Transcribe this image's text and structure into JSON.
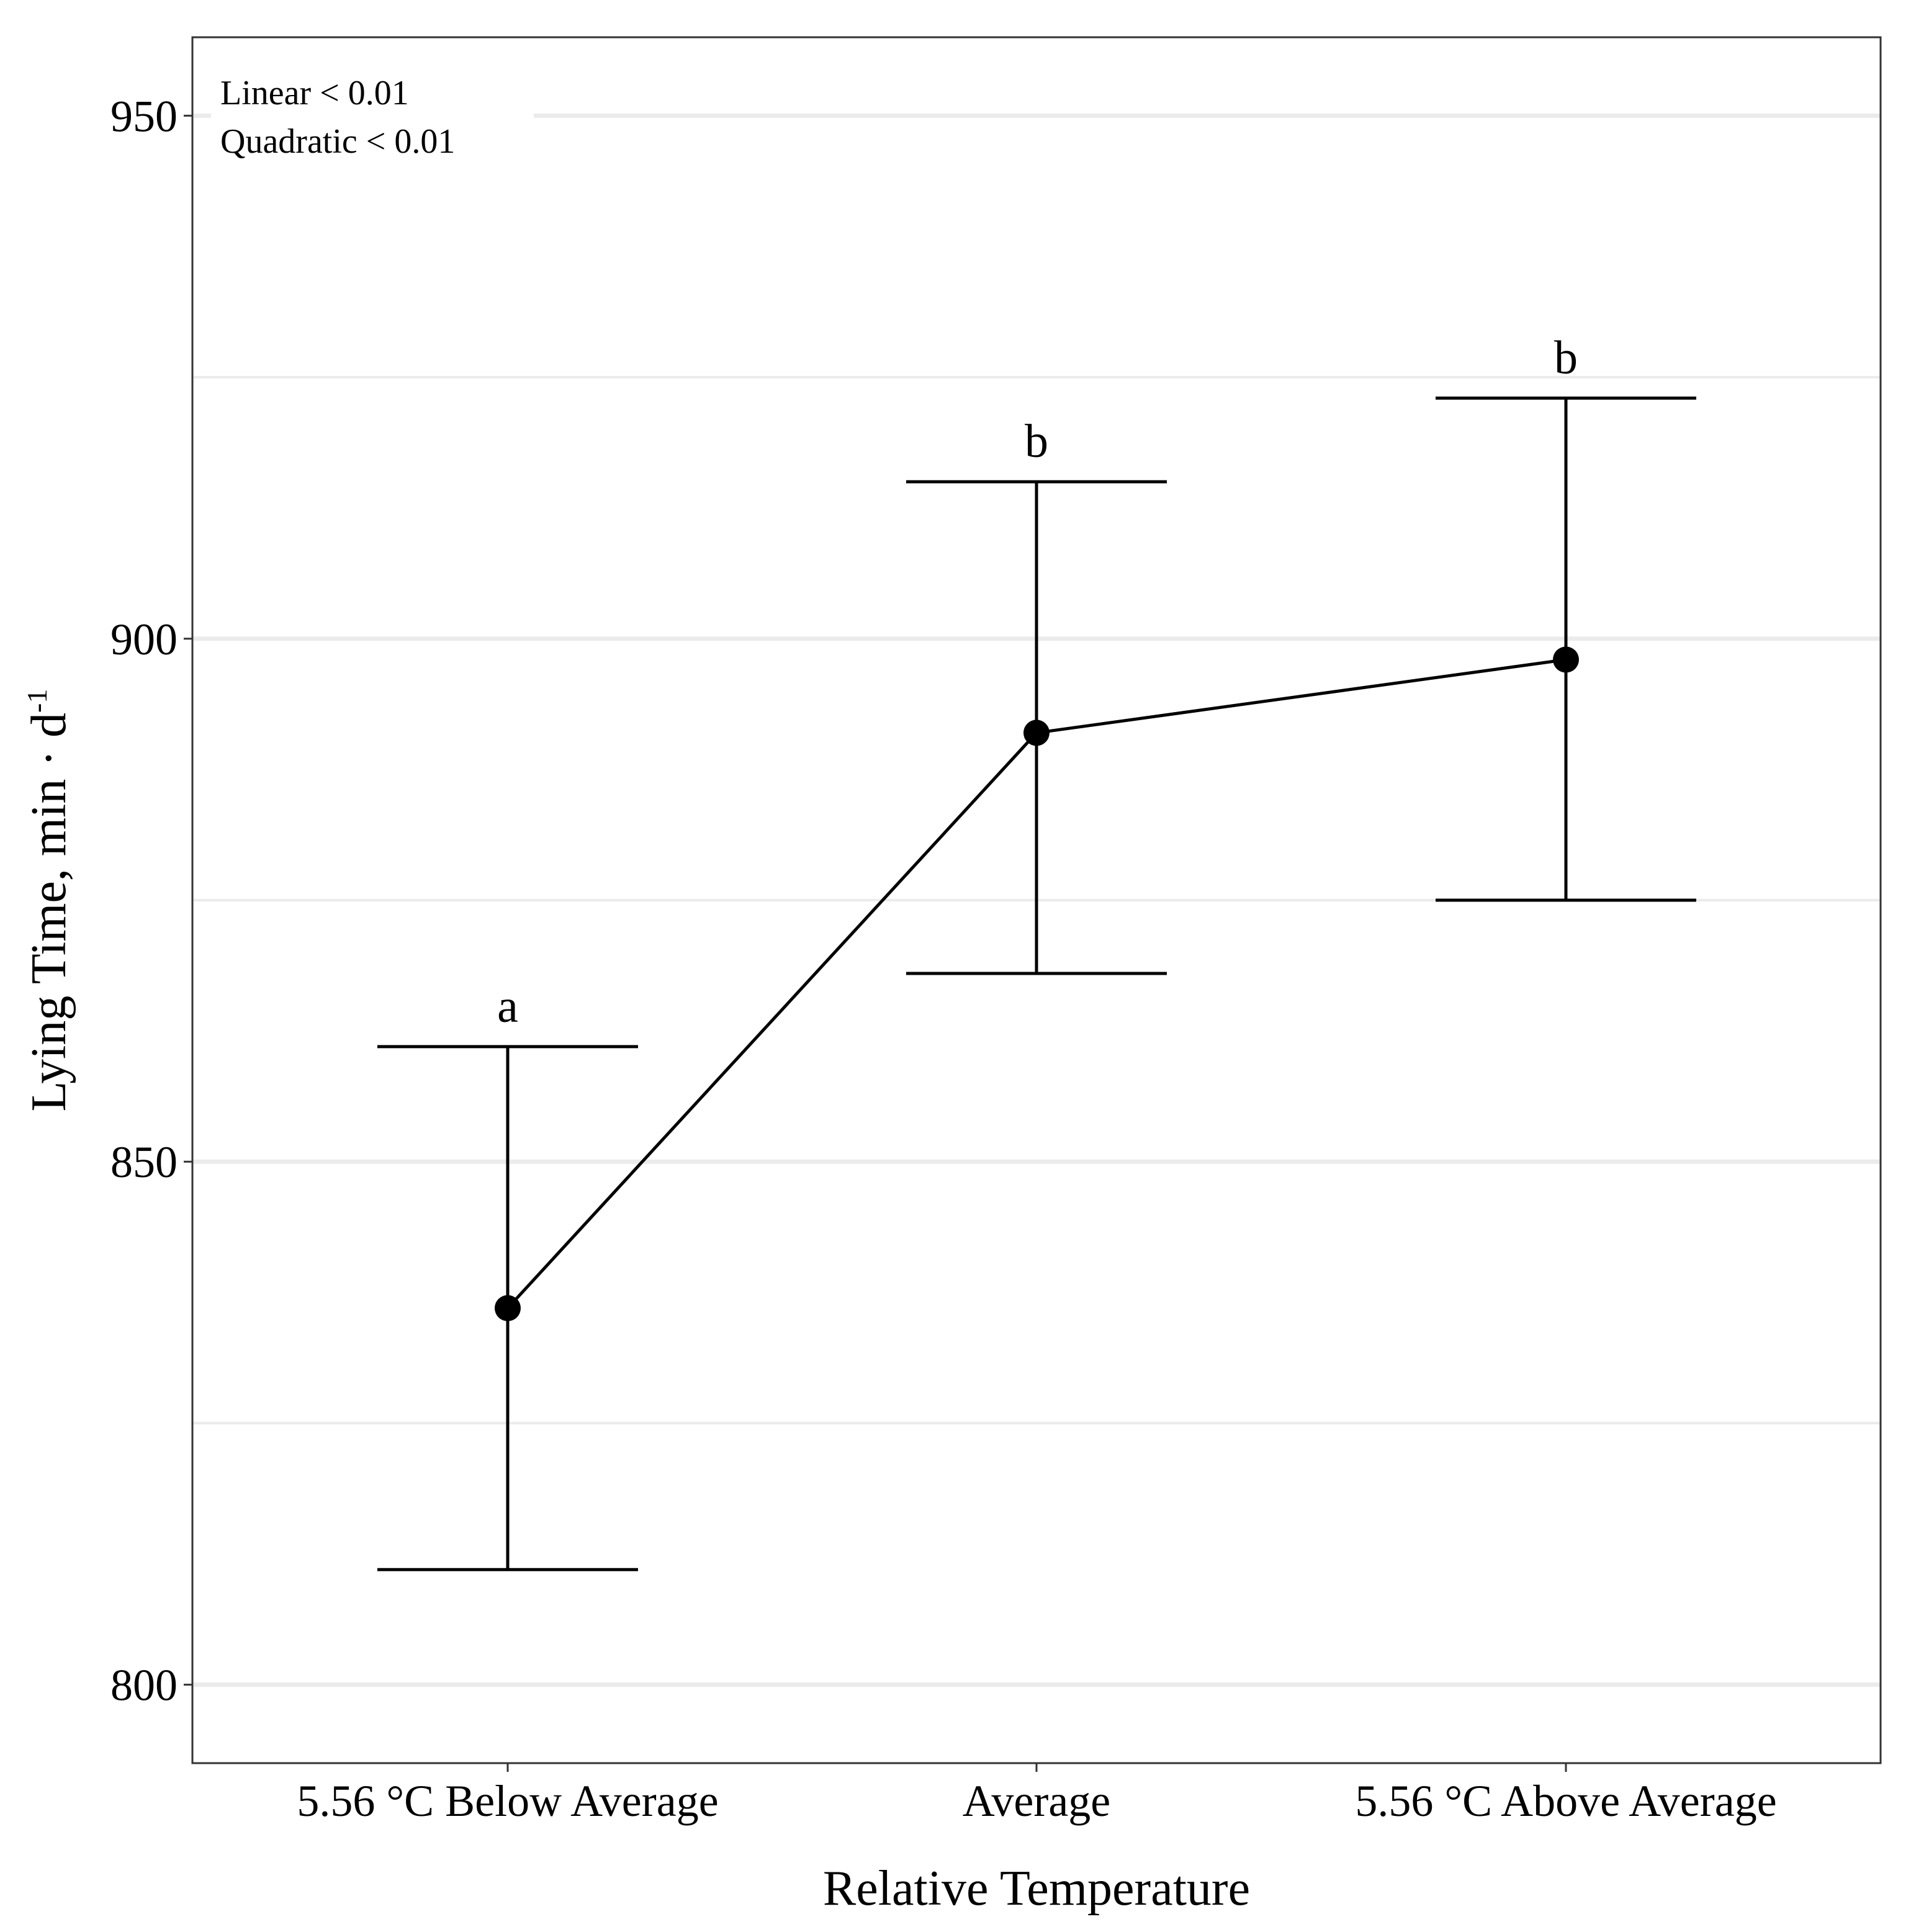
{
  "chart_data": {
    "type": "line",
    "title": "",
    "xlabel": "Relative Temperature",
    "ylabel": "Lying Time, min · d",
    "ylabel_superscript": "-1",
    "categories": [
      "5.56 °C Below Average",
      "Average",
      "5.56 °C Above Average"
    ],
    "series": [
      {
        "name": "Lying Time",
        "values": [
          836,
          891,
          898
        ],
        "error_lower": [
          811,
          868,
          875
        ],
        "error_upper": [
          861,
          915,
          923
        ],
        "significance": [
          "a",
          "b",
          "b"
        ]
      }
    ],
    "yticks": [
      800,
      850,
      900,
      950
    ],
    "ylim": [
      792.5,
      957.5
    ],
    "grid": true,
    "annotations": [
      "Linear < 0.01",
      "Quadratic < 0.01"
    ]
  },
  "colors": {
    "background": "#ffffff",
    "grid": "#ebebeb",
    "line": "#000000",
    "border": "#333333"
  }
}
